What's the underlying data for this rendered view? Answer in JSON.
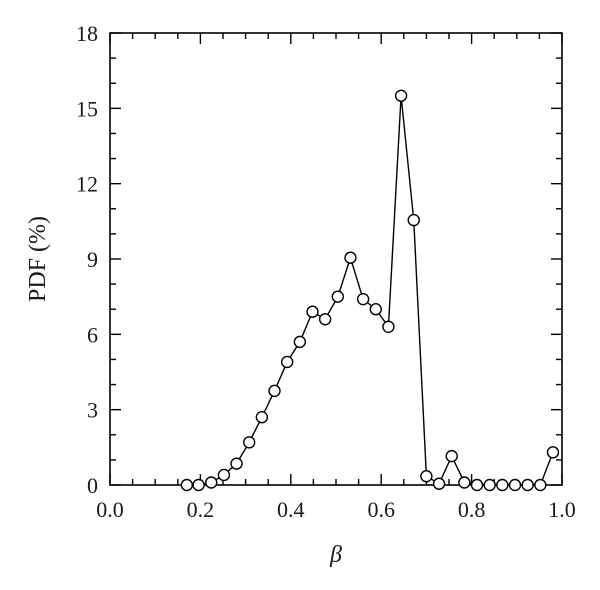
{
  "chart_data": {
    "type": "line",
    "xlabel": "β",
    "ylabel": "PDF (%)",
    "xlim": [
      0.0,
      1.0
    ],
    "ylim": [
      0,
      18
    ],
    "x_ticks": [
      0.0,
      0.2,
      0.4,
      0.6,
      0.8,
      1.0
    ],
    "x_tick_labels": [
      "0.0",
      "0.2",
      "0.4",
      "0.6",
      "0.8",
      "1.0"
    ],
    "x_minor_step": 0.05,
    "y_ticks": [
      0,
      3,
      6,
      9,
      12,
      15,
      18
    ],
    "y_tick_labels": [
      "0",
      "3",
      "6",
      "9",
      "12",
      "15",
      "18"
    ],
    "y_minor_step": 1,
    "grid": false,
    "marker": "open-circle",
    "series": [
      {
        "x": [
          0.17,
          0.196,
          0.224,
          0.252,
          0.28,
          0.308,
          0.336,
          0.364,
          0.392,
          0.42,
          0.448,
          0.476,
          0.504,
          0.532,
          0.56,
          0.588,
          0.616,
          0.644,
          0.672,
          0.7,
          0.728,
          0.756,
          0.784,
          0.812,
          0.84,
          0.868,
          0.896,
          0.924,
          0.952,
          0.98
        ],
        "y": [
          0.0,
          0.0,
          0.1,
          0.4,
          0.85,
          1.7,
          2.7,
          3.75,
          4.9,
          5.7,
          6.9,
          6.6,
          7.5,
          9.05,
          7.4,
          7.0,
          6.3,
          15.5,
          10.55,
          0.35,
          0.05,
          1.15,
          0.1,
          0.0,
          0.0,
          0.0,
          0.0,
          0.0,
          0.0,
          1.3
        ]
      }
    ]
  }
}
